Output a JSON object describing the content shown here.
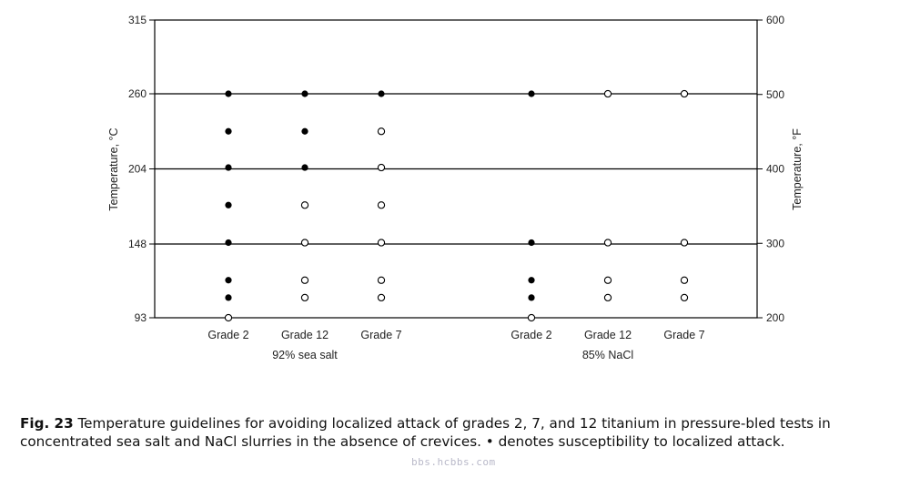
{
  "chart_data": {
    "type": "scatter",
    "y_left": {
      "label": "Temperature, °C",
      "ticks": [
        93,
        148,
        204,
        260,
        315
      ],
      "range": [
        93,
        315
      ]
    },
    "y_right": {
      "label": "Temperature, °F",
      "ticks": [
        200,
        300,
        400,
        500,
        600
      ],
      "range": [
        200,
        600
      ]
    },
    "gridlines_c": [
      148,
      204,
      260
    ],
    "groups": [
      {
        "label": "92% sea salt",
        "grades": [
          {
            "name": "Grade 2",
            "points": [
              {
                "t": 93,
                "susceptible": false
              },
              {
                "t": 108,
                "susceptible": true
              },
              {
                "t": 121,
                "susceptible": true
              },
              {
                "t": 149,
                "susceptible": true
              },
              {
                "t": 177,
                "susceptible": true
              },
              {
                "t": 205,
                "susceptible": true
              },
              {
                "t": 232,
                "susceptible": true
              },
              {
                "t": 260,
                "susceptible": true
              }
            ]
          },
          {
            "name": "Grade 12",
            "points": [
              {
                "t": 108,
                "susceptible": false
              },
              {
                "t": 121,
                "susceptible": false
              },
              {
                "t": 149,
                "susceptible": false
              },
              {
                "t": 177,
                "susceptible": false
              },
              {
                "t": 205,
                "susceptible": true
              },
              {
                "t": 232,
                "susceptible": true
              },
              {
                "t": 260,
                "susceptible": true
              }
            ]
          },
          {
            "name": "Grade 7",
            "points": [
              {
                "t": 108,
                "susceptible": false
              },
              {
                "t": 121,
                "susceptible": false
              },
              {
                "t": 149,
                "susceptible": false
              },
              {
                "t": 177,
                "susceptible": false
              },
              {
                "t": 205,
                "susceptible": false
              },
              {
                "t": 232,
                "susceptible": false
              },
              {
                "t": 260,
                "susceptible": true
              }
            ]
          }
        ]
      },
      {
        "label": "85% NaCl",
        "grades": [
          {
            "name": "Grade 2",
            "points": [
              {
                "t": 93,
                "susceptible": false
              },
              {
                "t": 108,
                "susceptible": true
              },
              {
                "t": 121,
                "susceptible": true
              },
              {
                "t": 149,
                "susceptible": true
              },
              {
                "t": 260,
                "susceptible": true
              }
            ]
          },
          {
            "name": "Grade 12",
            "points": [
              {
                "t": 108,
                "susceptible": false
              },
              {
                "t": 121,
                "susceptible": false
              },
              {
                "t": 149,
                "susceptible": false
              },
              {
                "t": 260,
                "susceptible": false
              }
            ]
          },
          {
            "name": "Grade 7",
            "points": [
              {
                "t": 108,
                "susceptible": false
              },
              {
                "t": 121,
                "susceptible": false
              },
              {
                "t": 149,
                "susceptible": false
              },
              {
                "t": 260,
                "susceptible": false
              }
            ]
          }
        ]
      }
    ],
    "grid": "horizontal",
    "colors": {
      "filled": "#000000",
      "open_stroke": "#000000",
      "axis": "#000000"
    }
  },
  "caption": {
    "label": "Fig. 23",
    "text": " Temperature guidelines for avoiding localized attack of grades 2, 7, and 12 titanium in pressure-bled tests in concentrated sea salt and NaCl slurries in the absence of crevices. • denotes susceptibility to localized attack."
  },
  "watermark": "bbs.hcbbs.com"
}
